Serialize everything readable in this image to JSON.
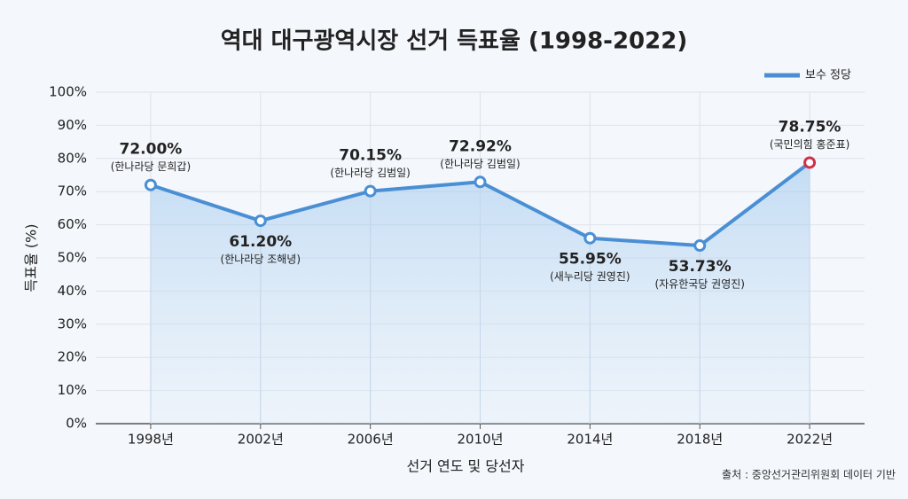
{
  "chart_data": {
    "type": "line",
    "title": "역대 대구광역시장 선거 득표율 (1998-2022)",
    "x_label": "선거 연도 및 당선자",
    "y_label": "득표율 (%)",
    "source": "출처 : 중앙선거관리위원회 데이터 기반",
    "categories": [
      "1998년",
      "2002년",
      "2006년",
      "2010년",
      "2014년",
      "2018년",
      "2022년"
    ],
    "series": [
      {
        "name": "보수 정당",
        "color": "#4a8fd4",
        "highlight_color": "#d0304a",
        "values": [
          72.0,
          61.2,
          70.15,
          72.92,
          55.95,
          53.73,
          78.75
        ],
        "value_labels": [
          "72.00%",
          "61.20%",
          "70.15%",
          "72.92%",
          "55.95%",
          "53.73%",
          "78.75%"
        ],
        "candidates": [
          "(한나라당 문희갑)",
          "(한나라당 조해녕)",
          "(한나라당 김범일)",
          "(한나라당 김범일)",
          "(새누리당 권영진)",
          "(자유한국당 권영진)",
          "(국민의힘 홍준표)"
        ]
      }
    ],
    "ylim": [
      0,
      100
    ],
    "yticks": [
      {
        "value": 0,
        "label": "0%"
      },
      {
        "value": 10,
        "label": "10%"
      },
      {
        "value": 20,
        "label": "20%"
      },
      {
        "value": 30,
        "label": "30%"
      },
      {
        "value": 40,
        "label": "40%"
      },
      {
        "value": 50,
        "label": "50%"
      },
      {
        "value": 60,
        "label": "60%"
      },
      {
        "value": 70,
        "label": "70%"
      },
      {
        "value": 80,
        "label": "80%"
      },
      {
        "value": 90,
        "label": "90%"
      },
      {
        "value": 100,
        "label": "100%"
      }
    ],
    "grid": true,
    "legend": "top-right"
  }
}
